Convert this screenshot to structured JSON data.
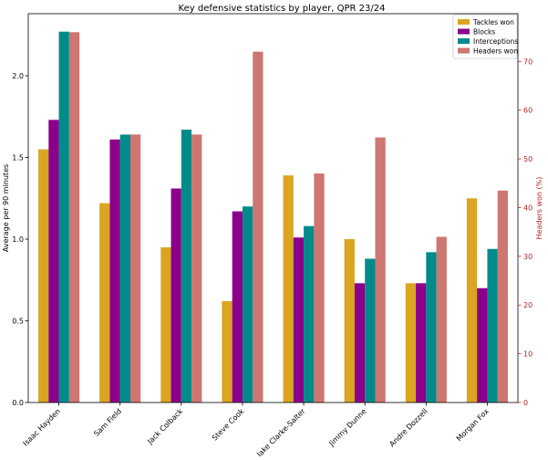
{
  "chart_data": {
    "type": "bar",
    "title": "Key defensive statistics by player, QPR 23/24",
    "ylabel_left": "Average per 90 minutes",
    "ylabel_right": "Headers won (%)",
    "xlabel": "",
    "categories": [
      "Isaac Hayden",
      "Sam Field",
      "Jack Colback",
      "Steve Cook",
      "Jake Clarke-Salter",
      "Jimmy Dunne",
      "Andre Dozzell",
      "Morgan Fox"
    ],
    "ylim_left": [
      0,
      2.38
    ],
    "ylim_right": [
      0,
      79.8
    ],
    "yticks_left": [
      "0.0",
      "0.5",
      "1.0",
      "1.5",
      "2.0"
    ],
    "yticks_right": [
      "0",
      "10",
      "20",
      "30",
      "40",
      "50",
      "60",
      "70"
    ],
    "series": [
      {
        "name": "Tackles won",
        "axis": "left",
        "color": "#DAA520",
        "values": [
          1.55,
          1.22,
          0.95,
          0.62,
          1.39,
          1.0,
          0.73,
          1.25
        ]
      },
      {
        "name": "Blocks",
        "axis": "left",
        "color": "#8B008B",
        "values": [
          1.73,
          1.61,
          1.31,
          1.17,
          1.01,
          0.73,
          0.73,
          0.7
        ]
      },
      {
        "name": "Interceptions",
        "axis": "left",
        "color": "#008B8B",
        "values": [
          2.27,
          1.64,
          1.67,
          1.2,
          1.08,
          0.88,
          0.92,
          0.94
        ]
      },
      {
        "name": "Headers won",
        "axis": "right",
        "color": "#CD7672",
        "values": [
          76.0,
          55.0,
          55.0,
          72.0,
          47.0,
          54.4,
          34.0,
          43.5
        ]
      }
    ],
    "legend_position": "top-right",
    "right_axis_color": "#B22222"
  }
}
